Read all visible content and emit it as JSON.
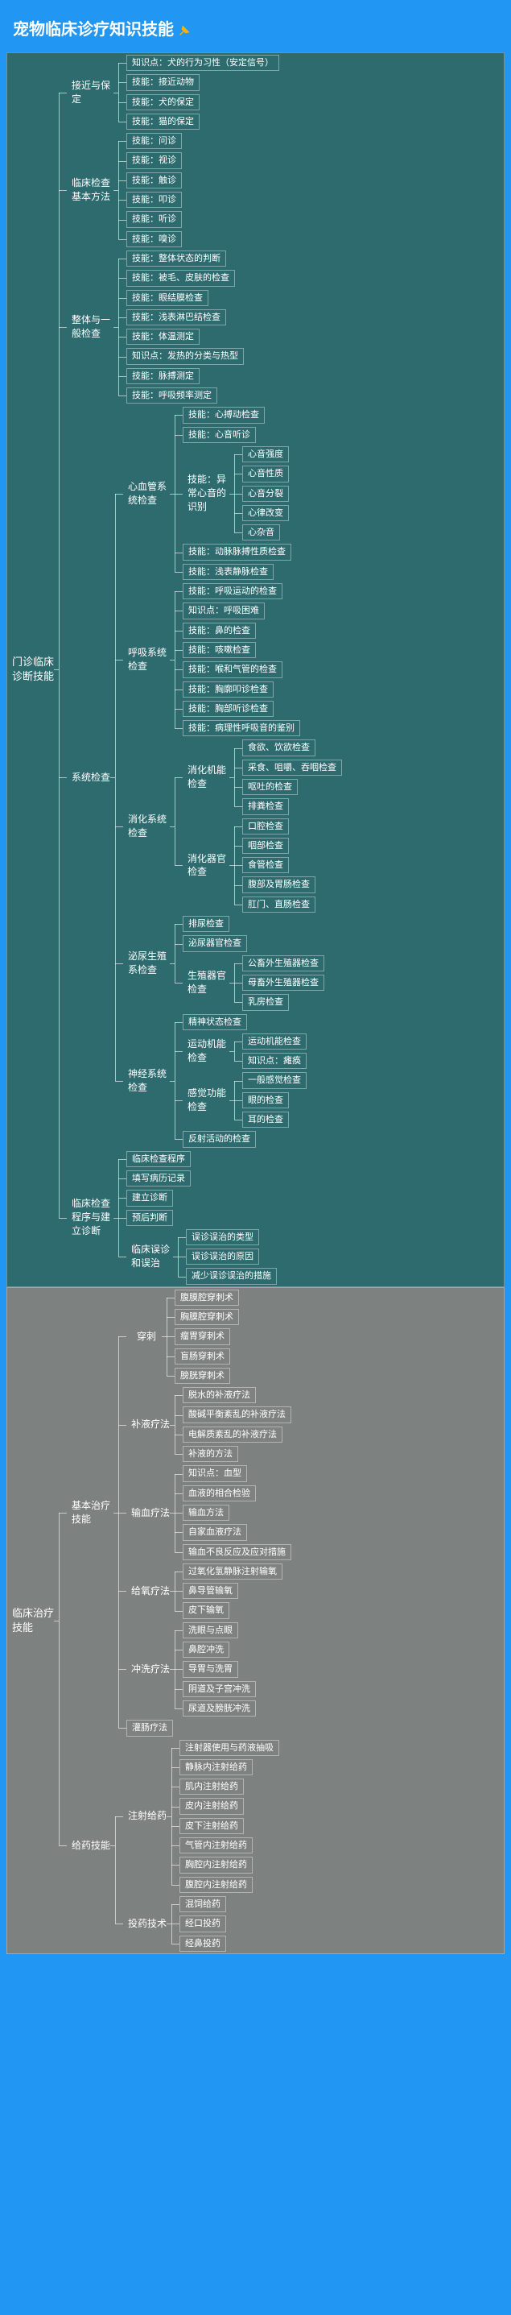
{
  "title": "宠物临床诊疗知识技能",
  "colors": {
    "page_bg": "#2196f3",
    "panel1_bg": "#2d6b6f",
    "panel2_bg": "#7d8280",
    "line": "rgba(255,255,255,0.6)",
    "text": "#ffffff",
    "leaf_border": "rgba(255,255,255,0.4)"
  },
  "sections": [
    {
      "bg": "panel-teal",
      "root": "门诊临床诊断技能",
      "children": [
        {
          "label": "接近与保定",
          "children": [
            {
              "leaf": "知识点：犬的行为习性（安定信号）"
            },
            {
              "leaf": "技能：接近动物"
            },
            {
              "leaf": "技能：犬的保定"
            },
            {
              "leaf": "技能：猫的保定"
            }
          ]
        },
        {
          "label": "临床检查基本方法",
          "children": [
            {
              "leaf": "技能：问诊"
            },
            {
              "leaf": "技能：视诊"
            },
            {
              "leaf": "技能：触诊"
            },
            {
              "leaf": "技能：叩诊"
            },
            {
              "leaf": "技能：听诊"
            },
            {
              "leaf": "技能：嗅诊"
            }
          ]
        },
        {
          "label": "整体与一般检查",
          "children": [
            {
              "leaf": "技能：整体状态的判断"
            },
            {
              "leaf": "技能：被毛、皮肤的检查"
            },
            {
              "leaf": "技能：眼结膜检查"
            },
            {
              "leaf": "技能：浅表淋巴结检查"
            },
            {
              "leaf": "技能：体温测定"
            },
            {
              "leaf": "知识点：发热的分类与热型"
            },
            {
              "leaf": "技能：脉搏测定"
            },
            {
              "leaf": "技能：呼吸频率测定"
            }
          ]
        },
        {
          "label": "系统检查",
          "children": [
            {
              "label": "心血管系统检查",
              "children": [
                {
                  "leaf": "技能：心搏动检查"
                },
                {
                  "leaf": "技能：心音听诊"
                },
                {
                  "label": "技能：异常心音的识别",
                  "children": [
                    {
                      "leaf": "心音强度"
                    },
                    {
                      "leaf": "心音性质"
                    },
                    {
                      "leaf": "心音分裂"
                    },
                    {
                      "leaf": "心律改变"
                    },
                    {
                      "leaf": "心杂音"
                    }
                  ]
                },
                {
                  "leaf": "技能：动脉脉搏性质检查"
                },
                {
                  "leaf": "技能：浅表静脉检查"
                }
              ]
            },
            {
              "label": "呼吸系统检查",
              "children": [
                {
                  "leaf": "技能：呼吸运动的检查"
                },
                {
                  "leaf": "知识点：呼吸困难"
                },
                {
                  "leaf": "技能：鼻的检查"
                },
                {
                  "leaf": "技能：咳嗽检查"
                },
                {
                  "leaf": "技能：喉和气管的检查"
                },
                {
                  "leaf": "技能：胸廓叩诊检查"
                },
                {
                  "leaf": "技能：胸部听诊检查"
                },
                {
                  "leaf": "技能：病理性呼吸音的鉴别"
                }
              ]
            },
            {
              "label": "消化系统检查",
              "children": [
                {
                  "label": "消化机能检查",
                  "children": [
                    {
                      "leaf": "食欲、饮欲检查"
                    },
                    {
                      "leaf": "采食、咀嚼、吞咽检查"
                    },
                    {
                      "leaf": "呕吐的检查"
                    },
                    {
                      "leaf": "排粪检查"
                    }
                  ]
                },
                {
                  "label": "消化器官检查",
                  "children": [
                    {
                      "leaf": "口腔检查"
                    },
                    {
                      "leaf": "咽部检查"
                    },
                    {
                      "leaf": "食管检查"
                    },
                    {
                      "leaf": "腹部及胃肠检查"
                    },
                    {
                      "leaf": "肛门、直肠检查"
                    }
                  ]
                }
              ]
            },
            {
              "label": "泌尿生殖系检查",
              "children": [
                {
                  "leaf": "排尿检查"
                },
                {
                  "leaf": "泌尿器官检查"
                },
                {
                  "label": "生殖器官检查",
                  "children": [
                    {
                      "leaf": "公畜外生殖器检查"
                    },
                    {
                      "leaf": "母畜外生殖器检查"
                    },
                    {
                      "leaf": "乳房检查"
                    }
                  ]
                }
              ]
            },
            {
              "label": "神经系统检查",
              "children": [
                {
                  "leaf": "精神状态检查"
                },
                {
                  "label": "运动机能检查",
                  "children": [
                    {
                      "leaf": "运动机能检查"
                    },
                    {
                      "leaf": "知识点：瘫痪"
                    }
                  ]
                },
                {
                  "label": "感觉功能检查",
                  "children": [
                    {
                      "leaf": "一般感觉检查"
                    },
                    {
                      "leaf": "眼的检查"
                    },
                    {
                      "leaf": "耳的检查"
                    }
                  ]
                },
                {
                  "leaf": "反射活动的检查"
                }
              ]
            }
          ]
        },
        {
          "label": "临床检查程序与建立诊断",
          "children": [
            {
              "leaf": "临床检查程序"
            },
            {
              "leaf": "填写病历记录"
            },
            {
              "leaf": "建立诊断"
            },
            {
              "leaf": "预后判断"
            },
            {
              "label": "临床误诊和误治",
              "children": [
                {
                  "leaf": "误诊误治的类型"
                },
                {
                  "leaf": "误诊误治的原因"
                },
                {
                  "leaf": "减少误诊误治的措施"
                }
              ]
            }
          ]
        }
      ]
    },
    {
      "bg": "panel-gray",
      "root": "临床治疗技能",
      "children": [
        {
          "label": "基本治疗技能",
          "children": [
            {
              "label": "穿刺",
              "children": [
                {
                  "leaf": "腹膜腔穿刺术"
                },
                {
                  "leaf": "胸膜腔穿刺术"
                },
                {
                  "leaf": "瘤胃穿刺术"
                },
                {
                  "leaf": "盲肠穿刺术"
                },
                {
                  "leaf": "膀胱穿刺术"
                }
              ]
            },
            {
              "label": "补液疗法",
              "children": [
                {
                  "leaf": "脱水的补液疗法"
                },
                {
                  "leaf": "酸碱平衡紊乱的补液疗法"
                },
                {
                  "leaf": "电解质紊乱的补液疗法"
                },
                {
                  "leaf": "补液的方法"
                }
              ]
            },
            {
              "label": "输血疗法",
              "children": [
                {
                  "leaf": "知识点：血型"
                },
                {
                  "leaf": "血液的相合检验"
                },
                {
                  "leaf": "输血方法"
                },
                {
                  "leaf": "自家血液疗法"
                },
                {
                  "leaf": "输血不良反应及应对措施"
                }
              ]
            },
            {
              "label": "给氧疗法",
              "children": [
                {
                  "leaf": "过氧化氢静脉注射输氧"
                },
                {
                  "leaf": "鼻导管输氧"
                },
                {
                  "leaf": "皮下输氧"
                }
              ]
            },
            {
              "label": "冲洗疗法",
              "children": [
                {
                  "leaf": "洗眼与点眼"
                },
                {
                  "leaf": "鼻腔冲洗"
                },
                {
                  "leaf": "导胃与洗胃"
                },
                {
                  "leaf": "阴道及子宫冲洗"
                },
                {
                  "leaf": "尿道及膀胱冲洗"
                }
              ]
            },
            {
              "leaf": "灌肠疗法"
            }
          ]
        },
        {
          "label": "给药技能",
          "children": [
            {
              "label": "注射给药",
              "children": [
                {
                  "leaf": "注射器使用与药液抽吸"
                },
                {
                  "leaf": "静脉内注射给药"
                },
                {
                  "leaf": "肌内注射给药"
                },
                {
                  "leaf": "皮内注射给药"
                },
                {
                  "leaf": "皮下注射给药"
                },
                {
                  "leaf": "气管内注射给药"
                },
                {
                  "leaf": "胸腔内注射给药"
                },
                {
                  "leaf": "腹腔内注射给药"
                }
              ]
            },
            {
              "label": "投药技术",
              "children": [
                {
                  "leaf": "混饲给药"
                },
                {
                  "leaf": "经口投药"
                },
                {
                  "leaf": "经鼻投药"
                }
              ]
            }
          ]
        }
      ]
    }
  ]
}
